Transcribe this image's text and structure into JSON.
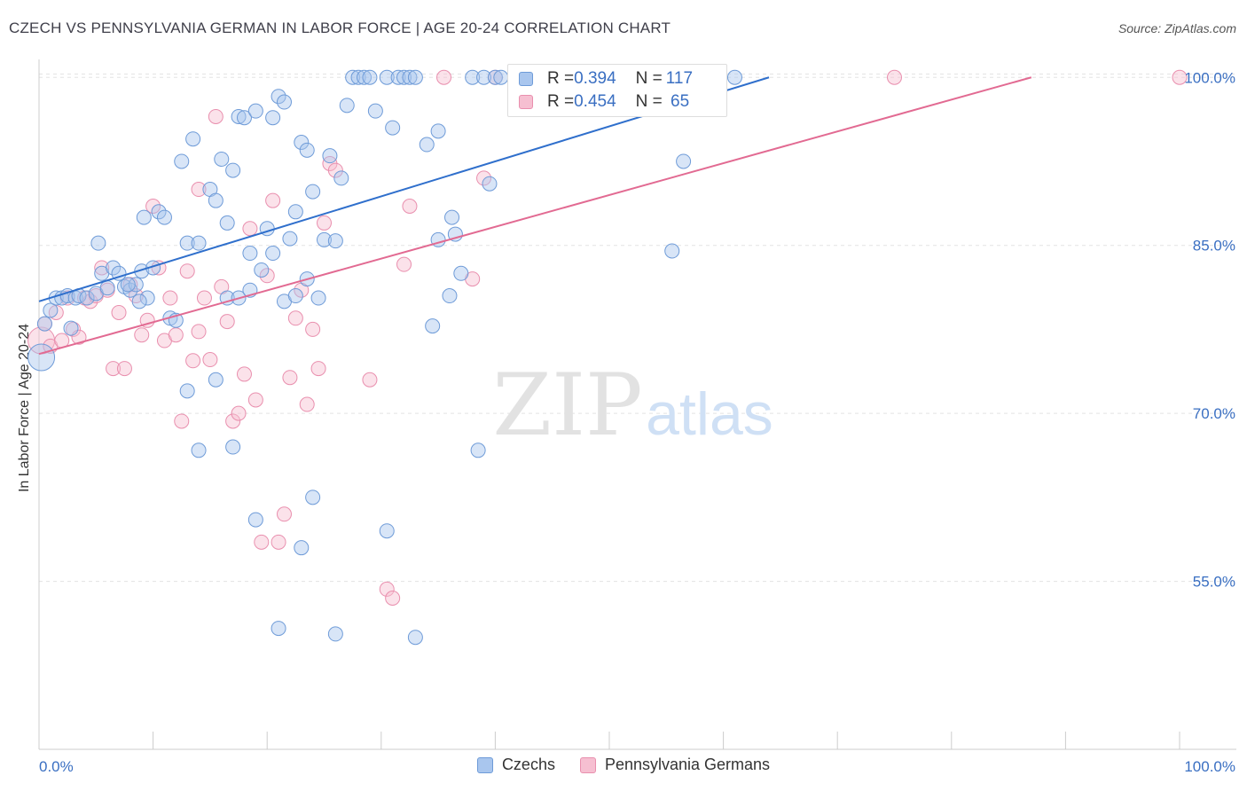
{
  "header": {
    "title": "CZECH VS PENNSYLVANIA GERMAN IN LABOR FORCE | AGE 20-24 CORRELATION CHART",
    "source": "Source: ZipAtlas.com"
  },
  "watermark": {
    "zip": "ZIP",
    "atlas": "atlas"
  },
  "legend": {
    "rows": [
      {
        "r_label": "R = ",
        "r_value": "0.394",
        "n_label": "N = ",
        "n_value": "117"
      },
      {
        "r_label": "R = ",
        "r_value": "0.454",
        "n_label": "N = ",
        "n_value": " 65"
      }
    ]
  },
  "colors": {
    "czech_fill": "#a9c6ee",
    "czech_stroke": "#6e9bd8",
    "czech_line": "#2f6fcc",
    "pa_fill": "#f6bfd1",
    "pa_stroke": "#e98fae",
    "pa_line": "#e26a92",
    "tick_label": "#3a6fc2"
  },
  "chart_data": {
    "type": "scatter",
    "title": "CZECH VS PENNSYLVANIA GERMAN IN LABOR FORCE | AGE 20-24 CORRELATION CHART",
    "xlabel": "",
    "ylabel": "In Labor Force | Age 20-24",
    "xlim": [
      0,
      100
    ],
    "ylim": [
      40,
      102
    ],
    "x_tick_labels": [
      "0.0%",
      "100.0%"
    ],
    "y_ticks": [
      55,
      70,
      85,
      100
    ],
    "y_tick_labels": [
      "55.0%",
      "70.0%",
      "85.0%",
      "100.0%"
    ],
    "grid": true,
    "legend_position": "top-center",
    "series": [
      {
        "name": "Czechs",
        "r": 0.394,
        "n": 117,
        "trend": [
          [
            0,
            80.0
          ],
          [
            64,
            100.0
          ]
        ],
        "points": [
          [
            0.2,
            75.0
          ],
          [
            0.5,
            78.0
          ],
          [
            1.0,
            79.2
          ],
          [
            1.5,
            80.3
          ],
          [
            2.0,
            80.3
          ],
          [
            2.5,
            80.5
          ],
          [
            2.8,
            77.6
          ],
          [
            3.2,
            80.3
          ],
          [
            3.5,
            80.5
          ],
          [
            4.2,
            80.3
          ],
          [
            5.0,
            80.7
          ],
          [
            5.5,
            82.5
          ],
          [
            6.0,
            81.2
          ],
          [
            6.5,
            83.0
          ],
          [
            7.0,
            82.5
          ],
          [
            7.5,
            81.3
          ],
          [
            8.0,
            81.0
          ],
          [
            8.5,
            81.5
          ],
          [
            9.0,
            82.7
          ],
          [
            9.5,
            80.3
          ],
          [
            5.2,
            85.2
          ],
          [
            7.8,
            81.5
          ],
          [
            8.8,
            80.0
          ],
          [
            9.2,
            87.5
          ],
          [
            10.0,
            83.0
          ],
          [
            10.5,
            88.0
          ],
          [
            11.0,
            87.5
          ],
          [
            11.5,
            78.5
          ],
          [
            12.0,
            78.3
          ],
          [
            12.5,
            92.5
          ],
          [
            13.0,
            85.2
          ],
          [
            13.5,
            94.5
          ],
          [
            14.0,
            85.2
          ],
          [
            15.0,
            90.0
          ],
          [
            15.5,
            89.0
          ],
          [
            16.0,
            92.7
          ],
          [
            16.5,
            87.0
          ],
          [
            17.0,
            91.7
          ],
          [
            17.5,
            96.5
          ],
          [
            18.0,
            96.4
          ],
          [
            18.5,
            84.3
          ],
          [
            19.0,
            97.0
          ],
          [
            19.5,
            82.8
          ],
          [
            20.0,
            86.5
          ],
          [
            20.5,
            96.4
          ],
          [
            21.0,
            98.3
          ],
          [
            21.5,
            97.8
          ],
          [
            22.0,
            85.6
          ],
          [
            22.5,
            88.0
          ],
          [
            23.0,
            94.2
          ],
          [
            23.5,
            93.5
          ],
          [
            24.0,
            89.8
          ],
          [
            24.5,
            80.3
          ],
          [
            25.0,
            85.5
          ],
          [
            25.5,
            93.0
          ],
          [
            26.0,
            85.4
          ],
          [
            26.5,
            91.0
          ],
          [
            27.0,
            97.5
          ],
          [
            27.5,
            100.0
          ],
          [
            28.0,
            100.0
          ],
          [
            28.5,
            100.0
          ],
          [
            29.0,
            100.0
          ],
          [
            29.5,
            97.0
          ],
          [
            30.5,
            100.0
          ],
          [
            31.0,
            95.5
          ],
          [
            31.5,
            100.0
          ],
          [
            32.0,
            100.0
          ],
          [
            32.5,
            100.0
          ],
          [
            33.0,
            100.0
          ],
          [
            34.0,
            94.0
          ],
          [
            35.0,
            95.2
          ],
          [
            36.0,
            80.5
          ],
          [
            36.5,
            86.0
          ],
          [
            37.0,
            82.5
          ],
          [
            38.0,
            100.0
          ],
          [
            39.0,
            100.0
          ],
          [
            40.0,
            100.0
          ],
          [
            40.5,
            100.0
          ],
          [
            34.5,
            77.8
          ],
          [
            36.2,
            87.5
          ],
          [
            16.5,
            80.3
          ],
          [
            17.5,
            80.3
          ],
          [
            18.5,
            81.0
          ],
          [
            20.5,
            84.3
          ],
          [
            21.5,
            80.0
          ],
          [
            22.5,
            80.5
          ],
          [
            23.5,
            82.0
          ],
          [
            13.0,
            72.0
          ],
          [
            14.0,
            66.7
          ],
          [
            15.5,
            73.0
          ],
          [
            17.0,
            67.0
          ],
          [
            19.0,
            60.5
          ],
          [
            21.0,
            50.8
          ],
          [
            23.0,
            58.0
          ],
          [
            24.0,
            62.5
          ],
          [
            26.0,
            50.3
          ],
          [
            30.5,
            59.5
          ],
          [
            33.0,
            50.0
          ],
          [
            38.5,
            66.7
          ],
          [
            35.0,
            85.5
          ],
          [
            39.5,
            90.5
          ],
          [
            43.0,
            100.0
          ],
          [
            43.5,
            100.0
          ],
          [
            44.0,
            100.0
          ],
          [
            46.0,
            100.0
          ],
          [
            51.0,
            100.0
          ],
          [
            52.0,
            100.0
          ],
          [
            55.0,
            100.0
          ],
          [
            56.0,
            100.0
          ],
          [
            57.0,
            100.0
          ],
          [
            58.0,
            100.0
          ],
          [
            55.5,
            84.5
          ],
          [
            56.5,
            92.5
          ],
          [
            61.0,
            100.0
          ],
          [
            49.0,
            100.0
          ],
          [
            53.5,
            100.0
          ],
          [
            57.5,
            100.0
          ]
        ]
      },
      {
        "name": "Pennsylvania Germans",
        "r": 0.454,
        "n": 65,
        "trend": [
          [
            0,
            75.3
          ],
          [
            87,
            100.0
          ]
        ],
        "points": [
          [
            0.2,
            76.5
          ],
          [
            0.5,
            78.0
          ],
          [
            1.0,
            76.0
          ],
          [
            1.5,
            79.0
          ],
          [
            2.0,
            76.5
          ],
          [
            2.5,
            80.3
          ],
          [
            3.0,
            77.5
          ],
          [
            3.5,
            76.8
          ],
          [
            4.0,
            80.3
          ],
          [
            4.5,
            80.0
          ],
          [
            5.0,
            80.5
          ],
          [
            5.5,
            83.0
          ],
          [
            6.0,
            81.0
          ],
          [
            6.5,
            74.0
          ],
          [
            7.0,
            79.0
          ],
          [
            7.5,
            74.0
          ],
          [
            8.0,
            81.5
          ],
          [
            8.5,
            80.5
          ],
          [
            9.0,
            77.0
          ],
          [
            9.5,
            78.3
          ],
          [
            10.0,
            88.5
          ],
          [
            10.5,
            83.0
          ],
          [
            11.0,
            76.5
          ],
          [
            11.5,
            80.3
          ],
          [
            12.0,
            77.0
          ],
          [
            12.5,
            69.3
          ],
          [
            13.0,
            82.7
          ],
          [
            13.5,
            74.7
          ],
          [
            14.0,
            77.3
          ],
          [
            14.5,
            80.3
          ],
          [
            15.0,
            74.8
          ],
          [
            15.5,
            96.5
          ],
          [
            16.0,
            81.3
          ],
          [
            16.5,
            78.2
          ],
          [
            17.0,
            69.3
          ],
          [
            17.5,
            70.0
          ],
          [
            18.0,
            73.5
          ],
          [
            18.5,
            86.5
          ],
          [
            19.0,
            71.2
          ],
          [
            19.5,
            58.5
          ],
          [
            20.0,
            82.3
          ],
          [
            20.5,
            89.0
          ],
          [
            21.0,
            58.5
          ],
          [
            21.5,
            61.0
          ],
          [
            22.0,
            73.2
          ],
          [
            22.5,
            78.5
          ],
          [
            23.0,
            81.0
          ],
          [
            23.5,
            70.8
          ],
          [
            24.0,
            77.5
          ],
          [
            24.5,
            74.0
          ],
          [
            25.0,
            87.0
          ],
          [
            25.5,
            92.3
          ],
          [
            26.0,
            91.7
          ],
          [
            29.0,
            73.0
          ],
          [
            30.5,
            54.3
          ],
          [
            31.0,
            53.5
          ],
          [
            32.0,
            83.3
          ],
          [
            32.5,
            88.5
          ],
          [
            35.5,
            100.0
          ],
          [
            38.0,
            82.0
          ],
          [
            39.0,
            91.0
          ],
          [
            40.0,
            100.0
          ],
          [
            14.0,
            90.0
          ],
          [
            75.0,
            100.0
          ],
          [
            100.0,
            100.0
          ]
        ]
      }
    ]
  }
}
